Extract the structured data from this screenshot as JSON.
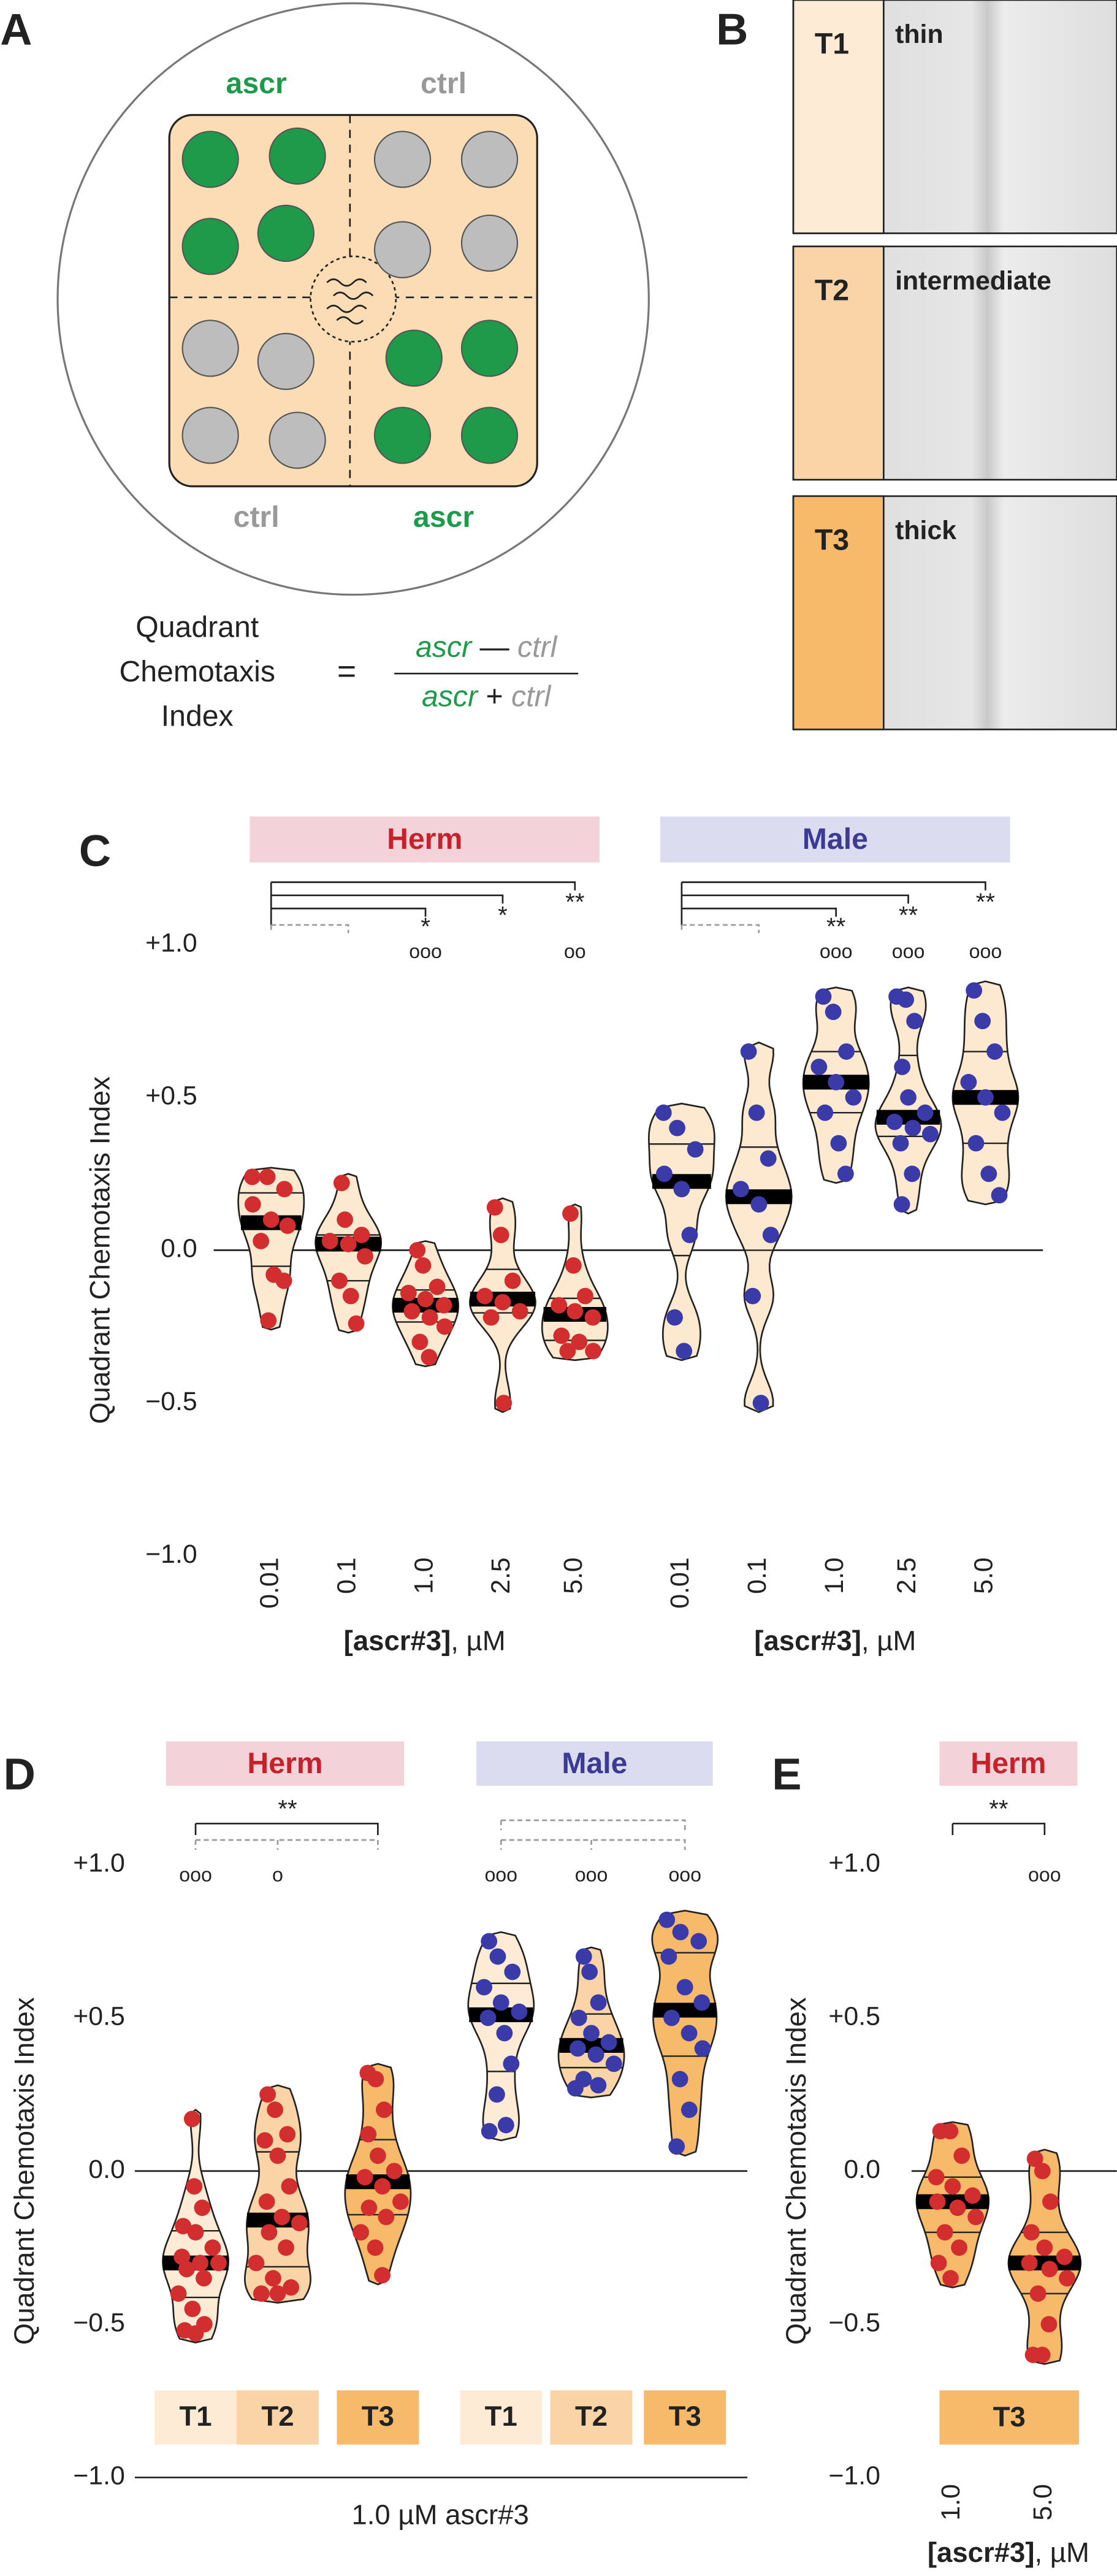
{
  "panel_a": {
    "label": "A",
    "quadrants": [
      "ascr",
      "ctrl",
      "ctrl",
      "ascr"
    ],
    "formula_name": [
      "Quadrant",
      "Chemotaxis",
      "Index"
    ],
    "equals": "=",
    "numerator": [
      "ascr",
      "—",
      "ctrl"
    ],
    "denominator": [
      "ascr",
      "+",
      "ctrl"
    ]
  },
  "panel_b": {
    "label": "B",
    "tiles": [
      {
        "name": "T1",
        "desc": "thin",
        "color": "#fdebd5"
      },
      {
        "name": "T2",
        "desc": "intermediate",
        "color": "#fad4a6"
      },
      {
        "name": "T3",
        "desc": "thick",
        "color": "#f7ba6b"
      }
    ]
  },
  "chart_data": [
    {
      "type": "violin",
      "panel": "C",
      "y_label": "Quadrant Chemotaxis Index",
      "ylim": [
        -1,
        1
      ],
      "yticks": [
        {
          "value": 1,
          "label": "+1.0"
        },
        {
          "value": 0.5,
          "label": "+0.5"
        },
        {
          "value": 0,
          "label": "0.0"
        },
        {
          "value": -0.5,
          "label": "−0.5"
        },
        {
          "value": -1,
          "label": "−1.0"
        }
      ],
      "groups": [
        {
          "name": "Herm",
          "header_color": "#f4d2d9",
          "name_color": "#c5222b",
          "point_color": "#d22d2f",
          "x_label_bold": "[ascr#3]",
          "x_label": ", µM",
          "violins": [
            {
              "category": "0.01",
              "color": "#fde9d0",
              "values": [
                0.24,
                0.24,
                0.2,
                0.15,
                0.1,
                0.08,
                0.03,
                -0.08,
                -0.1,
                -0.23
              ]
            },
            {
              "category": "0.1",
              "color": "#fde9d0",
              "values": [
                0.22,
                0.1,
                0.05,
                0.03,
                0.02,
                -0.02,
                -0.1,
                -0.15,
                -0.24
              ]
            },
            {
              "category": "1.0",
              "color": "#fde9d0",
              "values": [
                0.0,
                -0.05,
                -0.12,
                -0.14,
                -0.16,
                -0.18,
                -0.2,
                -0.22,
                -0.25,
                -0.3,
                -0.35
              ],
              "stars": "*",
              "circles": "ooo"
            },
            {
              "category": "2.5",
              "color": "#fde9d0",
              "values": [
                0.14,
                0.05,
                -0.1,
                -0.15,
                -0.17,
                -0.2,
                -0.22,
                -0.5
              ],
              "stars": "*"
            },
            {
              "category": "5.0",
              "color": "#fde9d0",
              "values": [
                0.12,
                -0.05,
                -0.15,
                -0.18,
                -0.2,
                -0.22,
                -0.28,
                -0.3,
                -0.33,
                -0.33
              ],
              "stars": "**",
              "circles": "oo"
            }
          ]
        },
        {
          "name": "Male",
          "header_color": "#dcdcf0",
          "name_color": "#3b3b96",
          "point_color": "#3a3aa8",
          "x_label_bold": "[ascr#3]",
          "x_label": ", µM",
          "violins": [
            {
              "category": "0.01",
              "color": "#fde9d0",
              "values": [
                0.45,
                0.4,
                0.33,
                0.25,
                0.2,
                0.05,
                -0.22,
                -0.33
              ]
            },
            {
              "category": "0.1",
              "color": "#fde9d0",
              "values": [
                0.65,
                0.45,
                0.3,
                0.2,
                0.15,
                0.05,
                -0.15,
                -0.5
              ]
            },
            {
              "category": "1.0",
              "color": "#fde9d0",
              "values": [
                0.83,
                0.78,
                0.65,
                0.6,
                0.55,
                0.5,
                0.45,
                0.35,
                0.25
              ],
              "stars": "**",
              "circles": "ooo"
            },
            {
              "category": "2.5",
              "color": "#fde9d0",
              "values": [
                0.83,
                0.82,
                0.75,
                0.6,
                0.5,
                0.45,
                0.42,
                0.4,
                0.38,
                0.35,
                0.25,
                0.15
              ],
              "stars": "**",
              "circles": "ooo"
            },
            {
              "category": "5.0",
              "color": "#fde9d0",
              "values": [
                0.85,
                0.75,
                0.65,
                0.55,
                0.5,
                0.45,
                0.35,
                0.25,
                0.18
              ],
              "stars": "**",
              "circles": "ooo"
            }
          ]
        }
      ]
    },
    {
      "type": "violin",
      "panel": "D",
      "y_label": "Quadrant Chemotaxis Index",
      "x_label": "1.0 µM ascr#3",
      "ylim": [
        -1,
        1
      ],
      "yticks": [
        {
          "value": 1,
          "label": "+1.0"
        },
        {
          "value": 0.5,
          "label": "+0.5"
        },
        {
          "value": 0,
          "label": "0.0"
        },
        {
          "value": -0.5,
          "label": "−0.5"
        },
        {
          "value": -1,
          "label": "−1.0"
        }
      ],
      "groups": [
        {
          "name": "Herm",
          "header_color": "#f4d2d9",
          "name_color": "#c5222b",
          "point_color": "#d22d2f",
          "violins": [
            {
              "category": "T1",
              "color": "#fdebd5",
              "values": [
                0.17,
                -0.05,
                -0.12,
                -0.18,
                -0.2,
                -0.25,
                -0.28,
                -0.3,
                -0.3,
                -0.32,
                -0.35,
                -0.4,
                -0.45,
                -0.5,
                -0.52,
                -0.53
              ],
              "circles": "ooo"
            },
            {
              "category": "T2",
              "color": "#fad4a6",
              "values": [
                0.25,
                0.2,
                0.12,
                0.1,
                0.05,
                -0.05,
                -0.1,
                -0.15,
                -0.17,
                -0.2,
                -0.25,
                -0.3,
                -0.35,
                -0.38,
                -0.4,
                -0.4
              ],
              "circles": "o"
            },
            {
              "category": "T3",
              "color": "#f7ba6b",
              "values": [
                0.32,
                0.3,
                0.2,
                0.12,
                0.05,
                0.0,
                -0.02,
                -0.05,
                -0.1,
                -0.12,
                -0.15,
                -0.2,
                -0.25,
                -0.34
              ],
              "stars": "**"
            }
          ]
        },
        {
          "name": "Male",
          "header_color": "#dcdcf0",
          "name_color": "#3b3b96",
          "point_color": "#3a3aa8",
          "violins": [
            {
              "category": "T1",
              "color": "#fdebd5",
              "values": [
                0.75,
                0.7,
                0.65,
                0.6,
                0.55,
                0.52,
                0.5,
                0.45,
                0.35,
                0.25,
                0.15,
                0.13
              ],
              "circles": "ooo"
            },
            {
              "category": "T2",
              "color": "#fad4a6",
              "values": [
                0.7,
                0.65,
                0.55,
                0.5,
                0.45,
                0.42,
                0.4,
                0.38,
                0.35,
                0.3,
                0.28,
                0.27
              ],
              "circles": "ooo"
            },
            {
              "category": "T3",
              "color": "#f7ba6b",
              "values": [
                0.82,
                0.78,
                0.75,
                0.7,
                0.6,
                0.55,
                0.5,
                0.45,
                0.4,
                0.3,
                0.2,
                0.08
              ],
              "circles": "ooo"
            }
          ]
        }
      ]
    },
    {
      "type": "violin",
      "panel": "E",
      "y_label": "Quadrant Chemotaxis Index",
      "ylim": [
        -1,
        1
      ],
      "box": {
        "label": "T3",
        "color": "#f7ba6b"
      },
      "yticks": [
        {
          "value": 1,
          "label": "+1.0"
        },
        {
          "value": 0.5,
          "label": "+0.5"
        },
        {
          "value": 0,
          "label": "0.0"
        },
        {
          "value": -0.5,
          "label": "−0.5"
        },
        {
          "value": -1,
          "label": "−1.0"
        }
      ],
      "groups": [
        {
          "name": "Herm",
          "header_color": "#f4d2d9",
          "name_color": "#c5222b",
          "point_color": "#d22d2f",
          "x_label_bold": "[ascr#3]",
          "x_label": ", µM",
          "violins": [
            {
              "category": "1.0",
              "color": "#f7ba6b",
              "values": [
                0.13,
                0.13,
                0.05,
                -0.02,
                -0.05,
                -0.08,
                -0.1,
                -0.12,
                -0.15,
                -0.2,
                -0.25,
                -0.3,
                -0.35
              ]
            },
            {
              "category": "5.0",
              "color": "#f7ba6b",
              "values": [
                0.04,
                0.0,
                -0.1,
                -0.2,
                -0.25,
                -0.28,
                -0.3,
                -0.32,
                -0.35,
                -0.4,
                -0.5,
                -0.6,
                -0.6
              ],
              "stars": "**",
              "circles": "ooo"
            }
          ]
        }
      ]
    }
  ]
}
